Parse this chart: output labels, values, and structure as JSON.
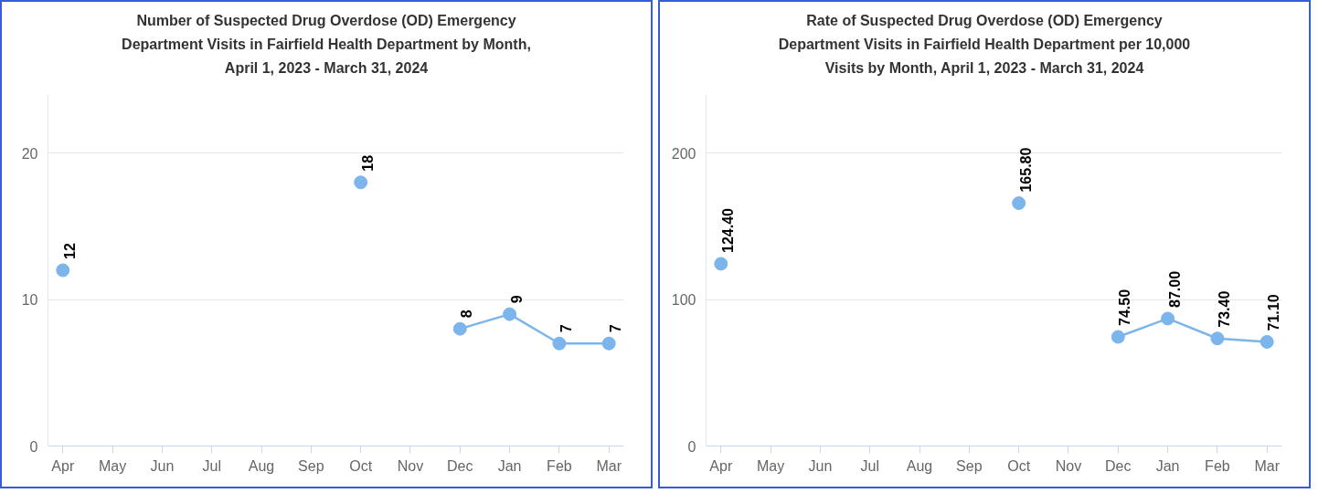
{
  "chart_data": [
    {
      "type": "line",
      "title": "Number of Suspected Drug Overdose (OD) Emergency\nDepartment Visits in Fairfield Health Department by Month,\nApril 1, 2023 - March 31, 2024",
      "categories": [
        "Apr",
        "May",
        "Jun",
        "Jul",
        "Aug",
        "Sep",
        "Oct",
        "Nov",
        "Dec",
        "Jan",
        "Feb",
        "Mar"
      ],
      "series": [
        {
          "color": "#7cb5ec",
          "values": [
            12,
            null,
            null,
            null,
            null,
            null,
            18,
            null,
            8,
            9,
            7,
            7
          ]
        }
      ],
      "ylim": [
        0,
        24
      ],
      "yticks": [
        0,
        10,
        20
      ],
      "grid": "y",
      "marker": "circle",
      "line_style": "solid",
      "data_labels": true
    },
    {
      "type": "line",
      "title": "Rate of Suspected Drug Overdose (OD) Emergency\nDepartment Visits in Fairfield Health Department per 10,000\nVisits by Month, April 1, 2023 - March 31, 2024",
      "categories": [
        "Apr",
        "May",
        "Jun",
        "Jul",
        "Aug",
        "Sep",
        "Oct",
        "Nov",
        "Dec",
        "Jan",
        "Feb",
        "Mar"
      ],
      "series": [
        {
          "color": "#7cb5ec",
          "values": [
            124.4,
            null,
            null,
            null,
            null,
            null,
            165.8,
            null,
            74.5,
            87.0,
            73.4,
            71.1
          ]
        }
      ],
      "ylim": [
        0,
        240
      ],
      "yticks": [
        0,
        100,
        200
      ],
      "grid": "y",
      "marker": "circle",
      "line_style": "solid",
      "value_labels": [
        "124.40",
        null,
        null,
        null,
        null,
        null,
        "165.80",
        null,
        "74.50",
        "87.00",
        "73.40",
        "71.10"
      ]
    }
  ]
}
